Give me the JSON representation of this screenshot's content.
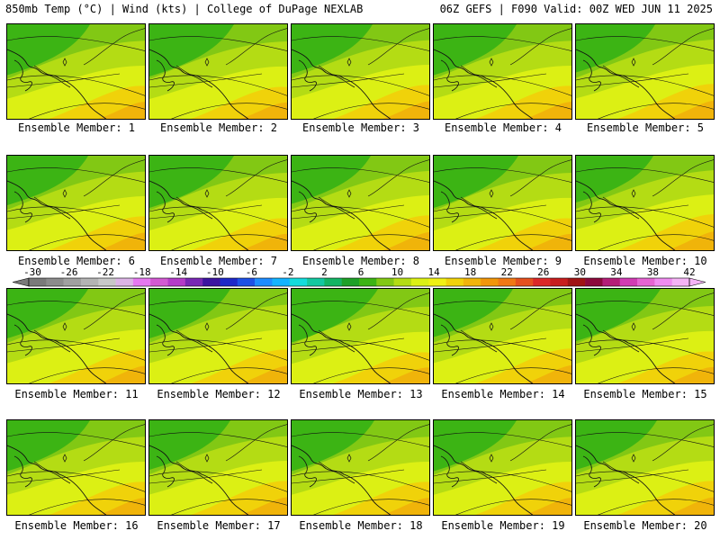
{
  "header": {
    "left": "850mb Temp (°C) | Wind (kts) | College of DuPage NEXLAB",
    "right": "06Z GEFS | F090 Valid: 00Z WED JUN 11 2025"
  },
  "member_label_prefix": "Ensemble Member: ",
  "members": [
    "1",
    "2",
    "3",
    "4",
    "5",
    "6",
    "7",
    "8",
    "9",
    "10",
    "11",
    "12",
    "13",
    "14",
    "15",
    "16",
    "17",
    "18",
    "19",
    "20"
  ],
  "colorbar": {
    "labels": [
      "-30",
      "-26",
      "-22",
      "-18",
      "-14",
      "-10",
      "-6",
      "-2",
      "2",
      "6",
      "10",
      "14",
      "18",
      "22",
      "26",
      "30",
      "34",
      "38",
      "42"
    ],
    "colors": [
      "#7a7a7a",
      "#8c8c8c",
      "#a0a0a0",
      "#b4b4b4",
      "#c8c8c8",
      "#dcb4e6",
      "#e678f0",
      "#d25ad2",
      "#b43cc8",
      "#7828b4",
      "#3c14a0",
      "#1e28c8",
      "#1e50e6",
      "#1e8cff",
      "#14b4ff",
      "#14dcdc",
      "#14c8a0",
      "#14b464",
      "#1ea028",
      "#3cb414",
      "#82c814",
      "#b4dc14",
      "#dcf014",
      "#f0f014",
      "#f0d20a",
      "#f0b40a",
      "#f0960a",
      "#f07814",
      "#e6501e",
      "#dc2828",
      "#c81e1e",
      "#a01414",
      "#8c0a3c",
      "#b41e78",
      "#d23cb4",
      "#e664d2",
      "#f08cf0",
      "#f5b4f5"
    ]
  },
  "panel_shading": [
    {
      "cool": 0.55
    },
    {
      "cool": 0.6
    },
    {
      "cool": 0.5
    },
    {
      "cool": 0.55
    },
    {
      "cool": 0.45
    },
    {
      "cool": 0.5
    },
    {
      "cool": 0.6
    },
    {
      "cool": 0.45
    },
    {
      "cool": 0.6
    },
    {
      "cool": 0.4
    },
    {
      "cool": 0.5
    },
    {
      "cool": 0.5
    },
    {
      "cool": 0.65
    },
    {
      "cool": 0.45
    },
    {
      "cool": 0.6
    },
    {
      "cool": 0.55
    },
    {
      "cool": 0.5
    },
    {
      "cool": 0.55
    },
    {
      "cool": 0.55
    },
    {
      "cool": 0.5
    }
  ]
}
